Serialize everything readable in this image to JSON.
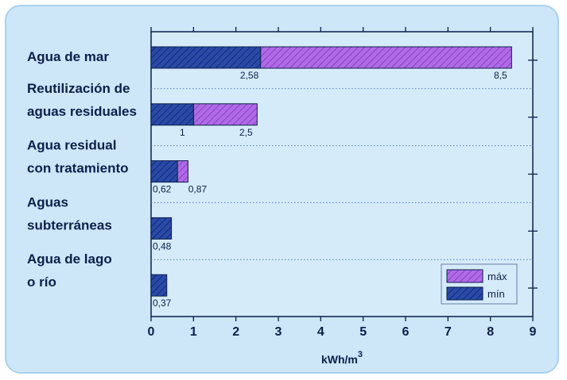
{
  "chart_data": {
    "type": "bar",
    "orientation": "horizontal",
    "categories": [
      [
        "Agua de mar"
      ],
      [
        "Reutilización de",
        "aguas residuales"
      ],
      [
        "Agua residual",
        "con tratamiento"
      ],
      [
        "Aguas",
        "subterráneas"
      ],
      [
        "Agua de lago",
        "o río"
      ]
    ],
    "series": [
      {
        "name": "mín",
        "values": [
          2.58,
          1,
          0.62,
          0.48,
          0.37
        ],
        "color": "#2a4aa8"
      },
      {
        "name": "máx",
        "values": [
          8.5,
          2.5,
          0.87,
          null,
          null
        ],
        "color": "#b06ae6"
      }
    ],
    "value_labels": {
      "min": [
        "2,58",
        "1",
        "0,62",
        "0,48",
        "0,37"
      ],
      "max": [
        "8,5",
        "2,5",
        "0,87",
        "",
        ""
      ]
    },
    "xlim": [
      0,
      9
    ],
    "xticks": [
      0,
      1,
      2,
      3,
      4,
      5,
      6,
      7,
      8,
      9
    ],
    "xlabel": "kWh/m",
    "xlabel_sup": "3",
    "grid": "dotted horizontal separators",
    "legend": {
      "position": "bottom-right",
      "entries": [
        {
          "label": "máx",
          "color": "#b06ae6"
        },
        {
          "label": "mín",
          "color": "#2a4aa8"
        }
      ]
    }
  }
}
